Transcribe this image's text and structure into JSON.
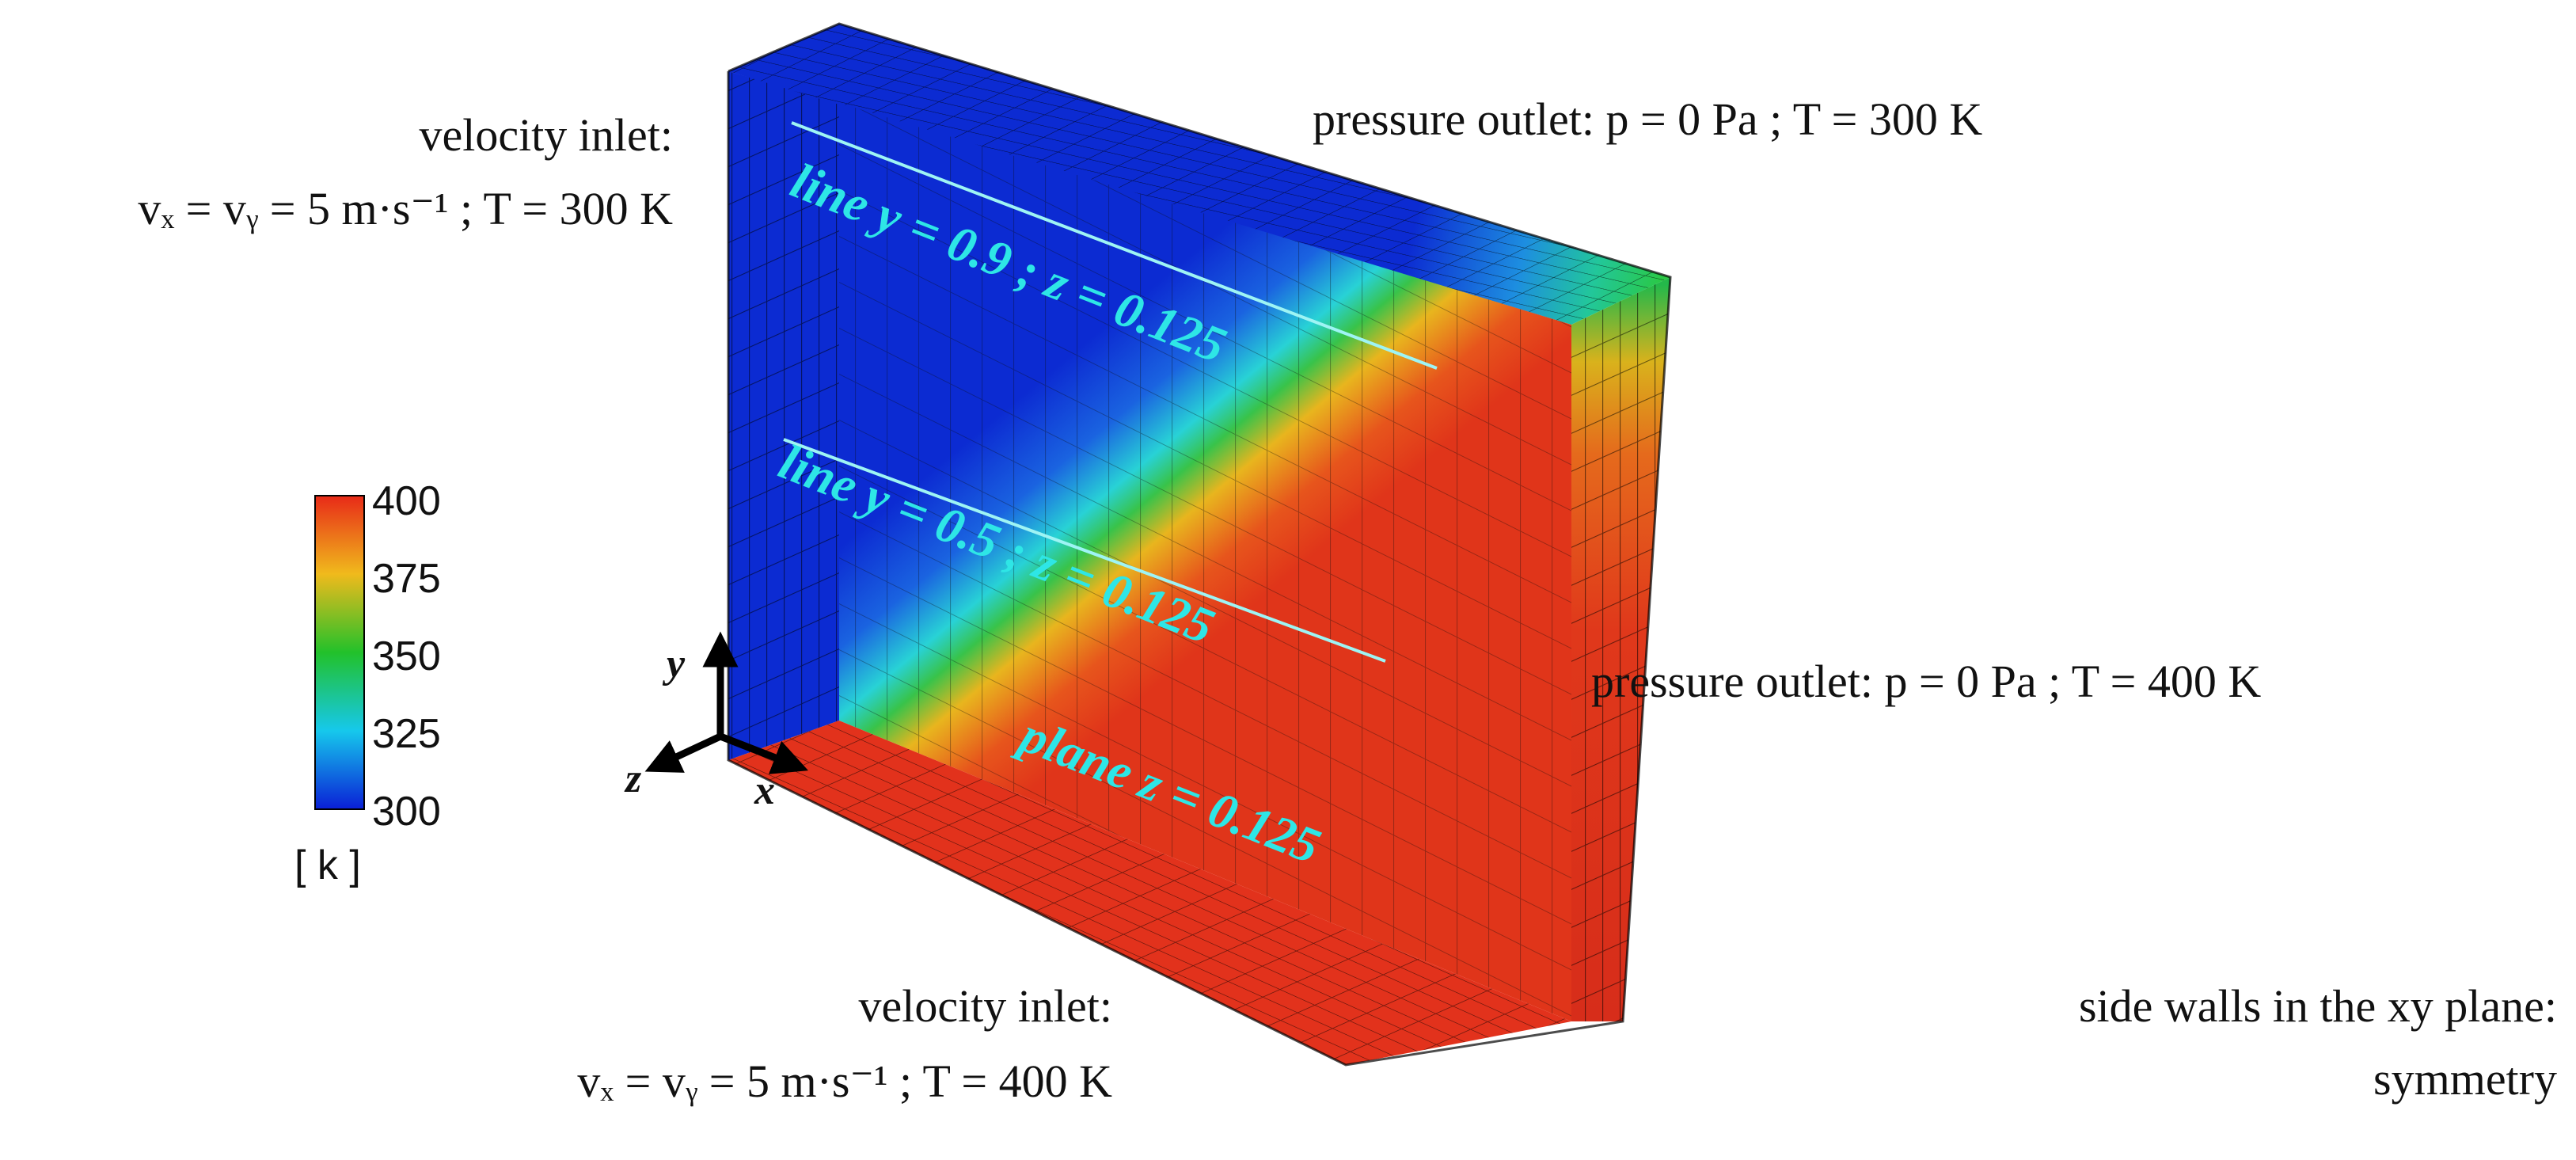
{
  "boundary_labels": {
    "top_left_title": "velocity inlet:",
    "top_left_value": "vₓ = vᵧ = 5 m·s⁻¹ ; T = 300 K",
    "top_right": "pressure outlet: p = 0 Pa ; T = 300 K",
    "mid_right": "pressure outlet: p = 0 Pa ; T = 400 K",
    "bottom_left_title": "velocity inlet:",
    "bottom_left_value": "vₓ = vᵧ = 5 m·s⁻¹ ; T = 400 K",
    "bottom_right_line1": "side walls in the xy plane:",
    "bottom_right_line2": "symmetry"
  },
  "annotations": {
    "line_top": "line y = 0.9 ; z = 0.125",
    "line_mid": "line y = 0.5 ; z = 0.125",
    "plane": "plane z = 0.125"
  },
  "axes": {
    "x": "x",
    "y": "y",
    "z": "z"
  },
  "colorbar": {
    "ticks": [
      "400",
      "375",
      "350",
      "325",
      "300"
    ],
    "unit": "[ k ]",
    "min": 300,
    "max": 400,
    "colors": [
      "#0a1fd6",
      "#16c8ec",
      "#22c12a",
      "#f0ba1c",
      "#e82a18"
    ]
  },
  "domain_colors": {
    "cold": "#0c2bd2",
    "cold_light": "#1f6fe0",
    "mixing": "#36c36a",
    "warm": "#f0a51c",
    "hot": "#e43a1c",
    "annotation": "#2ee6e6"
  }
}
